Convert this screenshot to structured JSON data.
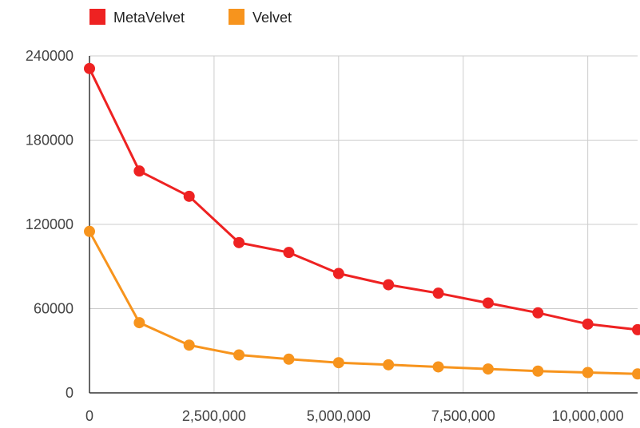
{
  "chart_data": {
    "type": "line",
    "x": [
      0,
      1000000,
      2000000,
      3000000,
      4000000,
      5000000,
      6000000,
      7000000,
      8000000,
      9000000,
      10000000,
      11000000
    ],
    "series": [
      {
        "name": "MetaVelvet",
        "color": "#ee2222",
        "values": [
          231000,
          158000,
          140000,
          107000,
          100000,
          85000,
          77000,
          71000,
          64000,
          57000,
          49000,
          45000
        ]
      },
      {
        "name": "Velvet",
        "color": "#f7941d",
        "values": [
          115000,
          50000,
          34000,
          27000,
          24000,
          21500,
          20000,
          18500,
          17000,
          15500,
          14500,
          13500
        ]
      }
    ],
    "xlim": [
      0,
      11000000
    ],
    "ylim": [
      0,
      240000
    ],
    "x_ticks": [
      0,
      2500000,
      5000000,
      7500000,
      10000000
    ],
    "x_tick_labels": [
      "0",
      "2,500,000",
      "5,000,000",
      "7,500,000",
      "10,000,000"
    ],
    "y_ticks": [
      0,
      60000,
      120000,
      180000,
      240000
    ],
    "y_tick_labels": [
      "0",
      "60000",
      "120000",
      "180000",
      "240000"
    ],
    "grid": true,
    "legend_position": "top-left"
  }
}
